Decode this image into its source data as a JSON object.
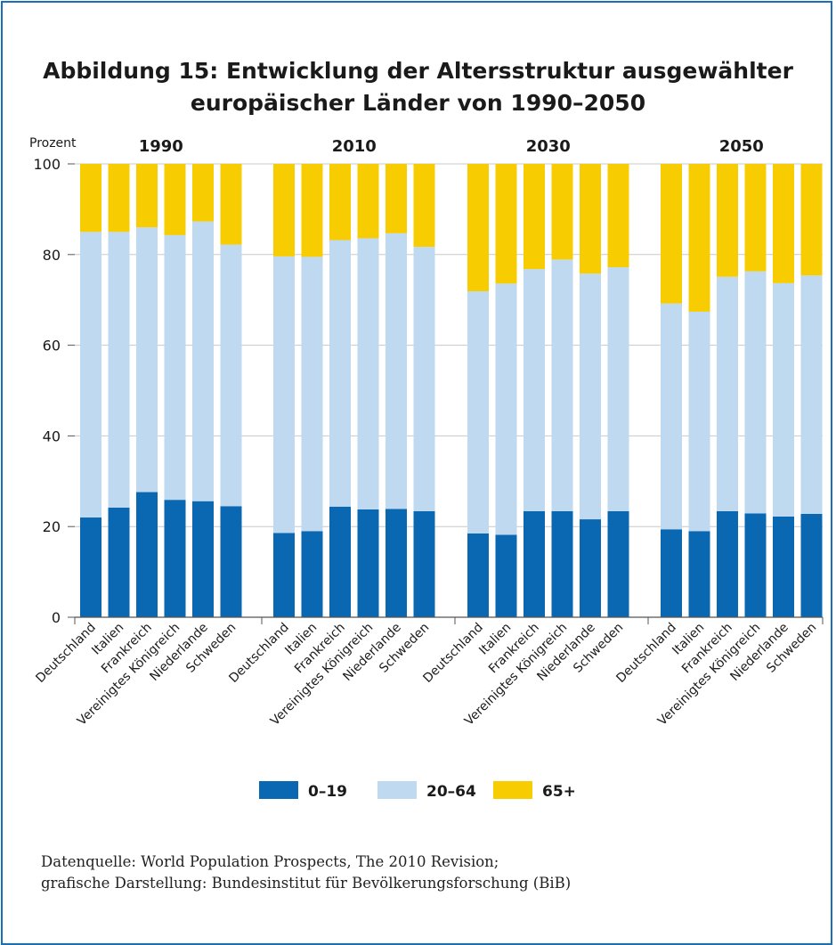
{
  "title_line1": "Abbildung 15: Entwicklung der Altersstruktur ausgewählter",
  "title_line2": "europäischer Länder von 1990–2050",
  "source_line1": "Datenquelle: World Population Prospects, The 2010 Revision;",
  "source_line2": "grafische Darstellung: Bundesinstitut für Bevölkerungsforschung (BiB)",
  "colors": {
    "age_0_19": "#0a67b2",
    "age_20_64": "#bed9f0",
    "age_65_plus": "#f7cc00",
    "frame": "#1a70b6"
  },
  "chart_data": {
    "type": "bar",
    "stacked": true,
    "ylabel": "Prozent",
    "ylim": [
      0,
      100
    ],
    "yticks": [
      0,
      20,
      40,
      60,
      80,
      100
    ],
    "grid": true,
    "legend_position": "bottom",
    "categories": [
      "Deutschland",
      "Italien",
      "Frankreich",
      "Vereinigtes Königreich",
      "Niederlande",
      "Schweden"
    ],
    "groups": [
      {
        "year": "1990",
        "age_0_19": [
          22,
          24.2,
          27.6,
          25.9,
          25.6,
          24.5
        ],
        "age_20_64": [
          63,
          60.8,
          58.4,
          58.4,
          61.7,
          57.7
        ],
        "age_65_plus": [
          15,
          15,
          14,
          15.7,
          12.7,
          17.8
        ]
      },
      {
        "year": "2010",
        "age_0_19": [
          18.6,
          19,
          24.4,
          23.8,
          23.9,
          23.4
        ],
        "age_20_64": [
          61,
          60.5,
          58.8,
          59.8,
          60.8,
          58.3
        ],
        "age_65_plus": [
          20.4,
          20.5,
          16.8,
          16.4,
          15.3,
          18.3
        ]
      },
      {
        "year": "2030",
        "age_0_19": [
          18.5,
          18.2,
          23.4,
          23.4,
          21.6,
          23.4
        ],
        "age_20_64": [
          53.4,
          55.4,
          53.4,
          55.5,
          54.2,
          53.8
        ],
        "age_65_plus": [
          28.1,
          26.4,
          23.2,
          21.1,
          24.2,
          22.8
        ]
      },
      {
        "year": "2050",
        "age_0_19": [
          19.4,
          19,
          23.4,
          22.9,
          22.2,
          22.8
        ],
        "age_20_64": [
          49.8,
          48.4,
          51.7,
          53.4,
          51.5,
          52.6
        ],
        "age_65_plus": [
          30.8,
          32.6,
          24.9,
          23.7,
          26.3,
          24.6
        ]
      }
    ],
    "series": [
      {
        "name": "0–19",
        "key": "age_0_19"
      },
      {
        "name": "20–64",
        "key": "age_20_64"
      },
      {
        "name": "65+",
        "key": "age_65_plus"
      }
    ]
  }
}
